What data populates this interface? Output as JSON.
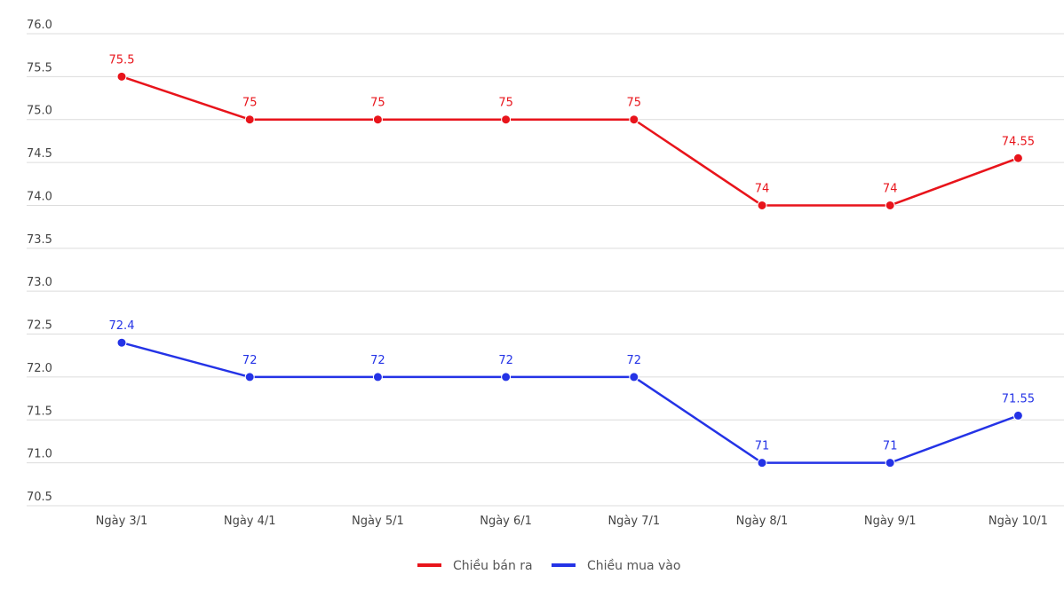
{
  "chart_data": {
    "type": "line",
    "title": "",
    "xlabel": "",
    "ylabel": "",
    "categories": [
      "Ngày 3/1",
      "Ngày 4/1",
      "Ngày 5/1",
      "Ngày 6/1",
      "Ngày 7/1",
      "Ngày 8/1",
      "Ngày 9/1",
      "Ngày 10/1"
    ],
    "ylim": [
      70.5,
      76.0
    ],
    "yticks": [
      "70.5",
      "71.0",
      "71.5",
      "72.0",
      "72.5",
      "73.0",
      "73.5",
      "74.0",
      "74.5",
      "75.0",
      "75.5",
      "76.0"
    ],
    "grid": true,
    "legend_position": "bottom-center",
    "series": [
      {
        "name": "Chiều bán ra",
        "color": "#e8141b",
        "values": [
          75.5,
          75,
          75,
          75,
          75,
          74,
          74,
          74.55
        ],
        "labels": [
          "75.5",
          "75",
          "75",
          "75",
          "75",
          "74",
          "74",
          "74.55"
        ]
      },
      {
        "name": "Chiều mua vào",
        "color": "#2433e6",
        "values": [
          72.4,
          72,
          72,
          72,
          72,
          71,
          71,
          71.55
        ],
        "labels": [
          "72.4",
          "72",
          "72",
          "72",
          "72",
          "71",
          "71",
          "71.55"
        ]
      }
    ]
  }
}
